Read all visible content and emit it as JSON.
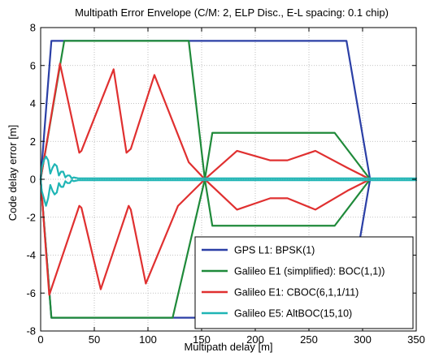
{
  "chart_data": {
    "type": "line",
    "title": "Multipath Error Envelope (C/M: 2, ELP Disc., E-L spacing: 0.1 chip)",
    "xlabel": "Multipath delay [m]",
    "ylabel": "Code delay error [m]",
    "xlim": [
      0,
      350
    ],
    "ylim": [
      -8,
      8
    ],
    "xticks": [
      0,
      50,
      100,
      150,
      200,
      250,
      300,
      350
    ],
    "yticks": [
      -8,
      -6,
      -4,
      -2,
      0,
      2,
      4,
      6,
      8
    ],
    "grid": true,
    "legend_position": "bottom-right",
    "series": [
      {
        "name": "GPS L1: BPSK(1)",
        "color": "#2b3fa6",
        "upper": [
          [
            0,
            0
          ],
          [
            10,
            7.3
          ],
          [
            285,
            7.3
          ],
          [
            307,
            0
          ]
        ],
        "lower": [
          [
            0,
            0
          ],
          [
            10,
            -7.3
          ],
          [
            285,
            -7.3
          ],
          [
            307,
            0
          ]
        ]
      },
      {
        "name": "Galileo E1 (simplified): BOC(1,1))",
        "color": "#1f8a3a",
        "upper": [
          [
            0,
            0
          ],
          [
            22,
            7.3
          ],
          [
            138,
            7.3
          ],
          [
            153,
            0
          ],
          [
            160,
            2.45
          ],
          [
            274,
            2.45
          ],
          [
            307,
            0
          ]
        ],
        "lower": [
          [
            0,
            0
          ],
          [
            10,
            -7.3
          ],
          [
            123,
            -7.3
          ],
          [
            153,
            0
          ],
          [
            160,
            -2.45
          ],
          [
            274,
            -2.45
          ],
          [
            307,
            0
          ]
        ]
      },
      {
        "name": "Galileo E1: CBOC(6,1,1/11)",
        "color": "#e03030",
        "upper": [
          [
            0,
            0
          ],
          [
            18,
            6.1
          ],
          [
            36,
            1.4
          ],
          [
            38,
            1.5
          ],
          [
            68,
            5.8
          ],
          [
            80,
            1.4
          ],
          [
            84,
            1.6
          ],
          [
            106,
            5.5
          ],
          [
            138,
            0.9
          ],
          [
            153,
            0
          ],
          [
            183,
            1.5
          ],
          [
            214,
            1.0
          ],
          [
            230,
            1.0
          ],
          [
            256,
            1.5
          ],
          [
            286,
            0.6
          ],
          [
            307,
            0
          ]
        ],
        "lower": [
          [
            0,
            0
          ],
          [
            8,
            -6.1
          ],
          [
            36,
            -1.4
          ],
          [
            38,
            -1.5
          ],
          [
            56,
            -5.8
          ],
          [
            82,
            -1.4
          ],
          [
            84,
            -1.6
          ],
          [
            98,
            -5.5
          ],
          [
            128,
            -1.4
          ],
          [
            153,
            0
          ],
          [
            183,
            -1.6
          ],
          [
            214,
            -1.0
          ],
          [
            230,
            -1.0
          ],
          [
            256,
            -1.6
          ],
          [
            286,
            -0.6
          ],
          [
            307,
            0
          ]
        ]
      },
      {
        "name": "Galileo E5: AltBOC(15,10)",
        "color": "#1fb5b5",
        "upper": [
          [
            0,
            0
          ],
          [
            1,
            0.6
          ],
          [
            3,
            1.0
          ],
          [
            5,
            1.2
          ],
          [
            7,
            1.0
          ],
          [
            9,
            0.3
          ],
          [
            11,
            0.6
          ],
          [
            13,
            0.8
          ],
          [
            15,
            0.7
          ],
          [
            17,
            0.2
          ],
          [
            19,
            0.4
          ],
          [
            21,
            0.4
          ],
          [
            23,
            0.1
          ],
          [
            25,
            0.2
          ],
          [
            27,
            0.2
          ],
          [
            29,
            0.05
          ],
          [
            31,
            0.1
          ],
          [
            35,
            0.05
          ],
          [
            40,
            0.05
          ],
          [
            350,
            0.05
          ]
        ],
        "lower": [
          [
            0,
            0
          ],
          [
            1,
            -0.6
          ],
          [
            3,
            -1.0
          ],
          [
            5,
            -1.4
          ],
          [
            7,
            -1.0
          ],
          [
            9,
            -0.3
          ],
          [
            11,
            -0.6
          ],
          [
            13,
            -0.8
          ],
          [
            15,
            -0.7
          ],
          [
            17,
            -0.2
          ],
          [
            19,
            -0.4
          ],
          [
            21,
            -0.4
          ],
          [
            23,
            -0.1
          ],
          [
            25,
            -0.2
          ],
          [
            27,
            -0.2
          ],
          [
            29,
            -0.05
          ],
          [
            31,
            -0.1
          ],
          [
            35,
            -0.05
          ],
          [
            40,
            -0.05
          ],
          [
            350,
            -0.05
          ]
        ]
      }
    ]
  }
}
